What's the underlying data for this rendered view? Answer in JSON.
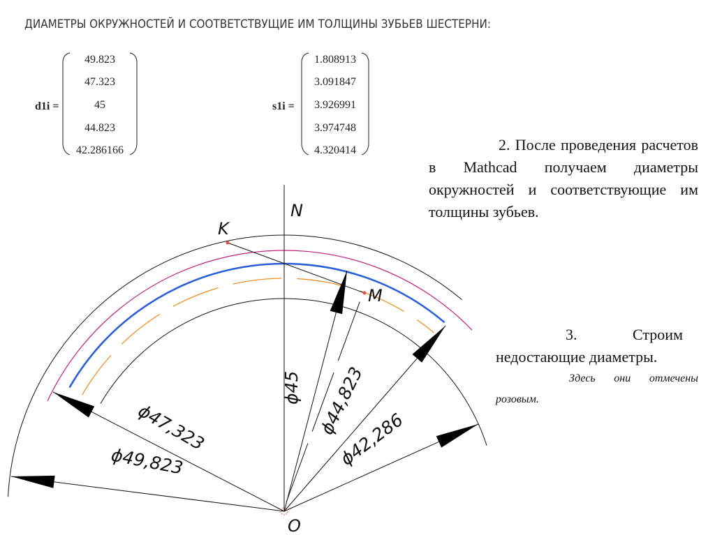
{
  "heading": "ДИАМЕТРЫ ОКРУЖНОСТЕЙ И СООТВЕТСТВУЩИЕ ИМ ТОЛЩИНЫ ЗУБЬЕВ ШЕСТЕРНИ:",
  "matrices": {
    "d1i": {
      "label": "d1i =",
      "values": [
        "49.823",
        "47.323",
        "45",
        "44.823",
        "42.286166"
      ]
    },
    "s1i": {
      "label": "s1i =",
      "values": [
        "1.808913",
        "3.091847",
        "3.926991",
        "3.974748",
        "4.320414"
      ]
    }
  },
  "text": {
    "step2": "2. После проведения расчетов в Mathcad получаем диаметры окружностей и соответствующие им толщины зубьев.",
    "step3": "3. Строим недостающие диаметры.",
    "note": "Здесь они отмечены розовым."
  },
  "drawing": {
    "points": {
      "N": "N",
      "K": "K",
      "M": "M",
      "O": "O"
    },
    "dimensions": {
      "d49": "ϕ49,823",
      "d47": "ϕ47,323",
      "d45": "ϕ45",
      "d44": "ϕ44,823",
      "d42": "ϕ42,286"
    },
    "colors": {
      "outline": "#111111",
      "pink": "#c0207a",
      "blue": "#2a5fd8",
      "orange": "#f08a1c",
      "point": "#e05050"
    }
  }
}
